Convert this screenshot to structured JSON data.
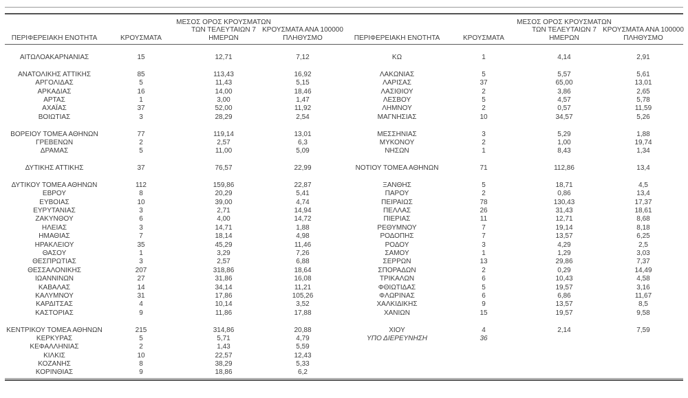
{
  "colors": {
    "text": "#3d3d3d",
    "rule_dark": "#525252",
    "rule_light": "#9b9b9b",
    "background": "#ffffff"
  },
  "table": {
    "headers": {
      "region": "ΠΕΡΙΦΕΡΕΙΑΚΗ ΕΝΟΤΗΤΑ",
      "cases": "ΚΡΟΥΣΜΑΤΑ",
      "avg7": "ΜΕΣΟΣ ΟΡΟΣ ΚΡΟΥΣΜΑΤΩΝ ΤΩΝ ΤΕΛΕΥΤΑΙΩΝ 7 ΗΜΕΡΩΝ",
      "per100k": "ΚΡΟΥΣΜΑΤΑ ΑΝΑ 100000 ΠΛΗΘΥΣΜΟ"
    },
    "rows": [
      {
        "l": [
          "ΑΙΤΩΛΟΑΚΑΡΝΑΝΙΑΣ",
          "15",
          "12,71",
          "7,12"
        ],
        "r": [
          "ΚΩ",
          "1",
          "4,14",
          "2,91"
        ]
      },
      {
        "gap": true
      },
      {
        "l": [
          "ΑΝΑΤΟΛΙΚΗΣ ΑΤΤΙΚΗΣ",
          "85",
          "113,43",
          "16,92"
        ],
        "r": [
          "ΛΑΚΩΝΙΑΣ",
          "5",
          "5,57",
          "5,61"
        ]
      },
      {
        "l": [
          "ΑΡΓΟΛΙΔΑΣ",
          "5",
          "11,43",
          "5,15"
        ],
        "r": [
          "ΛΑΡΙΣΑΣ",
          "37",
          "65,00",
          "13,01"
        ]
      },
      {
        "l": [
          "ΑΡΚΑΔΙΑΣ",
          "16",
          "14,00",
          "18,46"
        ],
        "r": [
          "ΛΑΣΙΘΙΟΥ",
          "2",
          "3,86",
          "2,65"
        ]
      },
      {
        "l": [
          "ΑΡΤΑΣ",
          "1",
          "3,00",
          "1,47"
        ],
        "r": [
          "ΛΕΣΒΟΥ",
          "5",
          "4,57",
          "5,78"
        ]
      },
      {
        "l": [
          "ΑΧΑΪΑΣ",
          "37",
          "52,00",
          "11,92"
        ],
        "r": [
          "ΛΗΜΝΟΥ",
          "2",
          "0,57",
          "11,59"
        ]
      },
      {
        "l": [
          "ΒΟΙΩΤΙΑΣ",
          "3",
          "28,29",
          "2,54"
        ],
        "r": [
          "ΜΑΓΝΗΣΙΑΣ",
          "10",
          "34,57",
          "5,26"
        ]
      },
      {
        "gap": true
      },
      {
        "l": [
          "ΒΟΡΕΙΟΥ ΤΟΜΕΑ ΑΘΗΝΩΝ",
          "77",
          "119,14",
          "13,01"
        ],
        "r": [
          "ΜΕΣΣΗΝΙΑΣ",
          "3",
          "5,29",
          "1,88"
        ]
      },
      {
        "l": [
          "ΓΡΕΒΕΝΩΝ",
          "2",
          "2,57",
          "6,3"
        ],
        "r": [
          "ΜΥΚΟΝΟΥ",
          "2",
          "1,00",
          "19,74"
        ]
      },
      {
        "l": [
          "ΔΡΑΜΑΣ",
          "5",
          "11,00",
          "5,09"
        ],
        "r": [
          "ΝΗΣΩΝ",
          "1",
          "8,43",
          "1,34"
        ]
      },
      {
        "gap": true
      },
      {
        "l": [
          "ΔΥΤΙΚΗΣ ΑΤΤΙΚΗΣ",
          "37",
          "76,57",
          "22,99"
        ],
        "r": [
          "ΝΟΤΙΟΥ ΤΟΜΕΑ ΑΘΗΝΩΝ",
          "71",
          "112,86",
          "13,4"
        ]
      },
      {
        "gap": true
      },
      {
        "l": [
          "ΔΥΤΙΚΟΥ ΤΟΜΕΑ ΑΘΗΝΩΝ",
          "112",
          "159,86",
          "22,87"
        ],
        "r": [
          "ΞΑΝΘΗΣ",
          "5",
          "18,71",
          "4,5"
        ]
      },
      {
        "l": [
          "ΕΒΡΟΥ",
          "8",
          "20,29",
          "5,41"
        ],
        "r": [
          "ΠΑΡΟΥ",
          "2",
          "0,86",
          "13,4"
        ]
      },
      {
        "l": [
          "ΕΥΒΟΙΑΣ",
          "10",
          "39,00",
          "4,74"
        ],
        "r": [
          "ΠΕΙΡΑΙΩΣ",
          "78",
          "130,43",
          "17,37"
        ]
      },
      {
        "l": [
          "ΕΥΡΥΤΑΝΙΑΣ",
          "3",
          "2,71",
          "14,94"
        ],
        "r": [
          "ΠΕΛΛΑΣ",
          "26",
          "31,43",
          "18,61"
        ]
      },
      {
        "l": [
          "ΖΑΚΥΝΘΟΥ",
          "6",
          "4,00",
          "14,72"
        ],
        "r": [
          "ΠΙΕΡΙΑΣ",
          "11",
          "12,71",
          "8,68"
        ]
      },
      {
        "l": [
          "ΗΛΕΙΑΣ",
          "3",
          "14,71",
          "1,88"
        ],
        "r": [
          "ΡΕΘΥΜΝΟΥ",
          "7",
          "19,14",
          "8,18"
        ]
      },
      {
        "l": [
          "ΗΜΑΘΙΑΣ",
          "7",
          "18,14",
          "4,98"
        ],
        "r": [
          "ΡΟΔΟΠΗΣ",
          "7",
          "13,57",
          "6,25"
        ]
      },
      {
        "l": [
          "ΗΡΑΚΛΕΙΟΥ",
          "35",
          "45,29",
          "11,46"
        ],
        "r": [
          "ΡΟΔΟΥ",
          "3",
          "4,29",
          "2,5"
        ]
      },
      {
        "l": [
          "ΘΑΣΟΥ",
          "1",
          "3,29",
          "7,26"
        ],
        "r": [
          "ΣΑΜΟΥ",
          "1",
          "1,29",
          "3,03"
        ]
      },
      {
        "l": [
          "ΘΕΣΠΡΩΤΙΑΣ",
          "3",
          "2,57",
          "6,88"
        ],
        "r": [
          "ΣΕΡΡΩΝ",
          "13",
          "29,86",
          "7,37"
        ]
      },
      {
        "l": [
          "ΘΕΣΣΑΛΟΝΙΚΗΣ",
          "207",
          "318,86",
          "18,64"
        ],
        "r": [
          "ΣΠΟΡΑΔΩΝ",
          "2",
          "0,29",
          "14,49"
        ]
      },
      {
        "l": [
          "ΙΩΑΝΝΙΝΩΝ",
          "27",
          "31,86",
          "16,08"
        ],
        "r": [
          "ΤΡΙΚΑΛΩΝ",
          "6",
          "10,43",
          "4,58"
        ]
      },
      {
        "l": [
          "ΚΑΒΑΛΑΣ",
          "14",
          "34,14",
          "11,21"
        ],
        "r": [
          "ΦΘΙΩΤΙΔΑΣ",
          "5",
          "19,57",
          "3,16"
        ]
      },
      {
        "l": [
          "ΚΑΛΥΜΝΟΥ",
          "31",
          "17,86",
          "105,26"
        ],
        "r": [
          "ΦΛΩΡΙΝΑΣ",
          "6",
          "6,86",
          "11,67"
        ]
      },
      {
        "l": [
          "ΚΑΡΔΙΤΣΑΣ",
          "4",
          "10,14",
          "3,52"
        ],
        "r": [
          "ΧΑΛΚΙΔΙΚΗΣ",
          "9",
          "13,57",
          "8,5"
        ]
      },
      {
        "l": [
          "ΚΑΣΤΟΡΙΑΣ",
          "9",
          "11,86",
          "17,88"
        ],
        "r": [
          "ΧΑΝΙΩΝ",
          "15",
          "19,57",
          "9,58"
        ]
      },
      {
        "gap": true
      },
      {
        "l": [
          "ΚΕΝΤΡΙΚΟΥ ΤΟΜΕΑ ΑΘΗΝΩΝ",
          "215",
          "314,86",
          "20,88"
        ],
        "r": [
          "ΧΙΟΥ",
          "4",
          "2,14",
          "7,59"
        ]
      },
      {
        "l": [
          "ΚΕΡΚΥΡΑΣ",
          "5",
          "5,71",
          "4,79"
        ],
        "r": [
          "ΥΠΟ ΔΙΕΡΕΥΝΗΣΗ",
          "36",
          "",
          ""
        ],
        "r_italic": true
      },
      {
        "l": [
          "ΚΕΦΑΛΛΗΝΙΑΣ",
          "2",
          "1,43",
          "5,59"
        ],
        "r": null
      },
      {
        "l": [
          "ΚΙΛΚΙΣ",
          "10",
          "22,57",
          "12,43"
        ],
        "r": null
      },
      {
        "l": [
          "ΚΟΖΑΝΗΣ",
          "8",
          "38,29",
          "5,33"
        ],
        "r": null
      },
      {
        "l": [
          "ΚΟΡΙΝΘΙΑΣ",
          "9",
          "18,86",
          "6,2"
        ],
        "r": null
      }
    ]
  }
}
